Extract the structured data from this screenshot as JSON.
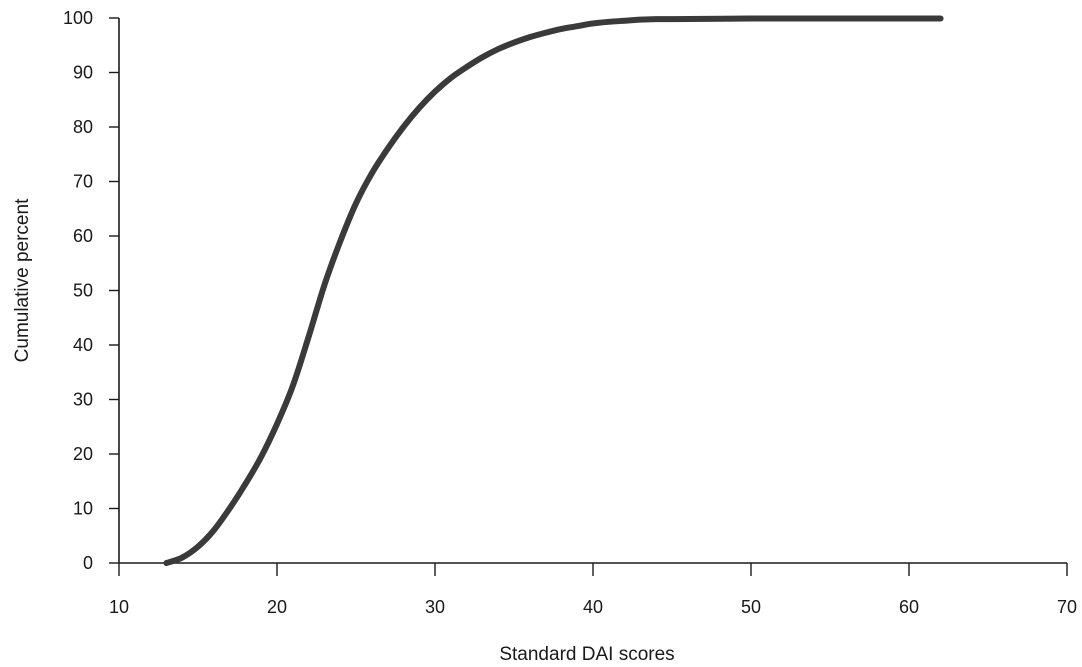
{
  "chart_data": {
    "type": "line",
    "title": "",
    "xlabel": "Standard DAI scores",
    "ylabel": "Cumulative percent",
    "xlim": [
      10,
      70
    ],
    "ylim": [
      0,
      100
    ],
    "xticks": [
      10,
      20,
      30,
      40,
      50,
      60,
      70
    ],
    "yticks": [
      0,
      10,
      20,
      30,
      40,
      50,
      60,
      70,
      80,
      90,
      100
    ],
    "grid": false,
    "legend": "none",
    "line_color": "#3a3a3a",
    "series": [
      {
        "x": [
          13,
          14,
          15,
          16,
          17,
          18,
          19,
          20,
          21,
          22,
          23,
          24,
          25,
          26,
          27,
          28,
          29,
          30,
          31,
          32,
          33,
          34,
          35,
          36,
          37,
          38,
          39,
          40,
          41,
          42,
          43,
          44,
          45,
          50,
          55,
          62
        ],
        "y": [
          0,
          1,
          3,
          6,
          10,
          14.5,
          19.5,
          25.5,
          32.5,
          41.5,
          51,
          59,
          66,
          71.5,
          76,
          80,
          83.5,
          86.5,
          89,
          91,
          92.8,
          94.3,
          95.5,
          96.5,
          97.3,
          98,
          98.5,
          99,
          99.3,
          99.5,
          99.7,
          99.8,
          99.8,
          99.9,
          99.9,
          99.9
        ]
      }
    ]
  }
}
